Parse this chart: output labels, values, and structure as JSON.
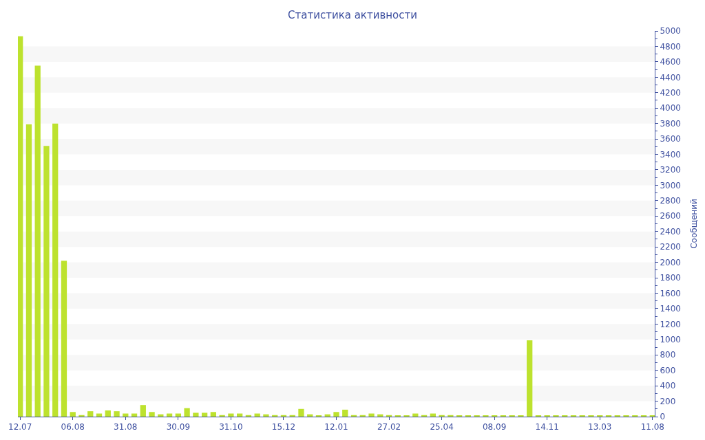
{
  "chart_data": {
    "type": "bar",
    "title": "Статистика активности",
    "ylabel": "Сообщений",
    "categories": [
      "12.07",
      null,
      null,
      null,
      null,
      null,
      "06.08",
      null,
      null,
      null,
      null,
      null,
      "31.08",
      null,
      null,
      null,
      null,
      null,
      "30.09",
      null,
      null,
      null,
      null,
      null,
      "31.10",
      null,
      null,
      null,
      null,
      null,
      "15.12",
      null,
      null,
      null,
      null,
      null,
      "12.01",
      null,
      null,
      null,
      null,
      null,
      "27.02",
      null,
      null,
      null,
      null,
      null,
      "25.04",
      null,
      null,
      null,
      null,
      null,
      "08.09",
      null,
      null,
      null,
      null,
      null,
      "14.11",
      null,
      null,
      null,
      null,
      null,
      "13.03",
      null,
      null,
      null,
      null,
      null,
      "11.08"
    ],
    "values": [
      4930,
      3790,
      4550,
      3510,
      3800,
      2020,
      60,
      20,
      70,
      40,
      80,
      70,
      40,
      40,
      150,
      60,
      30,
      40,
      40,
      110,
      50,
      50,
      60,
      20,
      40,
      40,
      20,
      40,
      30,
      20,
      20,
      20,
      100,
      30,
      10,
      30,
      60,
      90,
      20,
      20,
      40,
      30,
      20,
      10,
      10,
      40,
      20,
      40,
      20,
      20,
      10,
      10,
      10,
      10,
      10,
      10,
      10,
      10,
      990,
      10,
      10,
      10,
      10,
      10,
      10,
      10,
      10,
      10,
      10,
      10,
      10,
      10,
      10
    ],
    "color": "#bde22e",
    "ylim": [
      0,
      5000
    ],
    "yticks": [
      0,
      200,
      400,
      600,
      800,
      1000,
      1200,
      1400,
      1600,
      1800,
      2000,
      2200,
      2400,
      2600,
      2800,
      3000,
      3200,
      3400,
      3600,
      3800,
      4000,
      4200,
      4400,
      4600,
      4800,
      5000
    ]
  }
}
